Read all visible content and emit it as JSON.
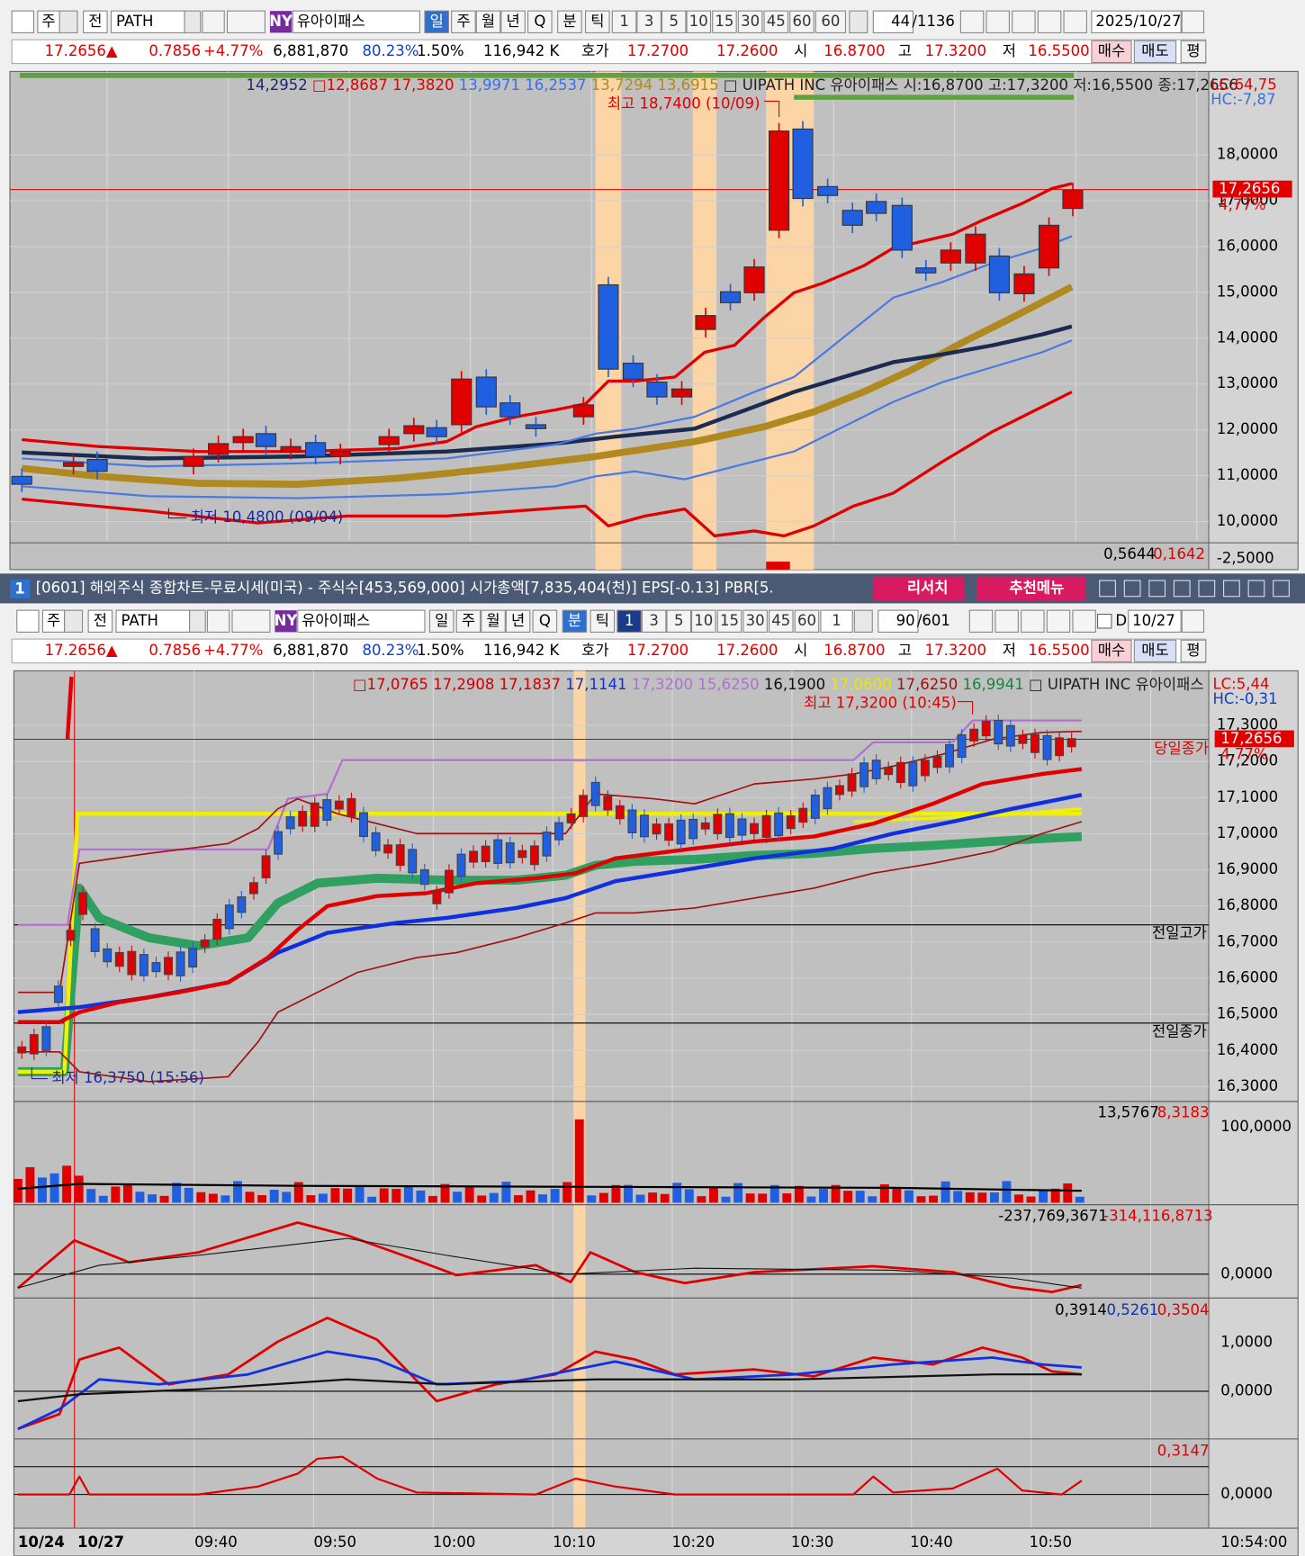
{
  "chart1": {
    "toolbar": {
      "market": "주",
      "mode": "전",
      "code": "PATH",
      "exchange": "NY",
      "name": "유아이패스",
      "periods": [
        "일",
        "주",
        "월",
        "년",
        "Q",
        "분",
        "틱"
      ],
      "intervals": [
        "1",
        "3",
        "5",
        "10",
        "15",
        "30",
        "45",
        "60",
        "60"
      ],
      "count": "44",
      "total": "/1136",
      "date": "2025/10/27"
    },
    "quote": {
      "price": "17.2656▲",
      "change": "0.7856",
      "rate": "+4.77%",
      "volume": "6,881,870",
      "strength": "80.23%",
      "turnover": "1.50%",
      "amount": "116,942 K",
      "quote_label": "호가",
      "ask": "17.2700",
      "bid": "17.2600",
      "open_label": "시",
      "open": "16.8700",
      "high_label": "고",
      "high": "17.3200",
      "low_label": "저",
      "low": "16.5500",
      "buttons": [
        "매수",
        "매도",
        "평"
      ]
    },
    "legend": [
      {
        "text": "14,2952",
        "color": "#1a2a6a"
      },
      {
        "text": " □12,8687 17,3820",
        "color": "#e00000"
      },
      {
        "text": " 13,9971 16,2537",
        "color": "#3a70e0"
      },
      {
        "text": " 13,7294 13,6915",
        "color": "#b08a20"
      },
      {
        "text": " □ UIPATH INC  유아이패스  시:16,8700 고:17,3200 저:16,5500 종:17,2656",
        "color": "#202020"
      }
    ],
    "lc": "LC:64,75",
    "hc": "HC:-7,87",
    "high_note": "최고 18,7400 (10/09)",
    "low_note": "최저 10,4800 (09/04)",
    "price_label": "17,2656",
    "rate_label": "4,77%",
    "axis": [
      "18,0000",
      "17,0000",
      "16,0000",
      "15,0000",
      "14,0000",
      "13,0000",
      "12,0000",
      "11,0000",
      "10,0000"
    ],
    "sub_values": [
      "0,5644",
      "0,1642"
    ],
    "sub_axis": "-2,5000"
  },
  "window2": {
    "number": "1",
    "title": "[0601] 해외주식 종합차트-무료시세(미국) - 주식수[453,569,000] 시가총액[7,835,404(천)] EPS[-0.13] PBR[5.",
    "buttons": [
      "리서치",
      "추천메뉴"
    ]
  },
  "chart2": {
    "toolbar": {
      "market": "주",
      "mode": "전",
      "code": "PATH",
      "exchange": "NY",
      "name": "유아이패스",
      "periods": [
        "일",
        "주",
        "월",
        "년",
        "Q",
        "분",
        "틱"
      ],
      "intervals": [
        "1",
        "3",
        "5",
        "10",
        "15",
        "30",
        "45",
        "60",
        "1"
      ],
      "count": "90",
      "total": "/601",
      "d": "D",
      "date": "10/27"
    },
    "quote": {
      "price": "17.2656▲",
      "change": "0.7856",
      "rate": "+4.77%",
      "volume": "6,881,870",
      "strength": "80.23%",
      "turnover": "1.50%",
      "amount": "116,942 K",
      "quote_label": "호가",
      "ask": "17.2700",
      "bid": "17.2600",
      "open_label": "시",
      "open": "16.8700",
      "high_label": "고",
      "high": "17.3200",
      "low_label": "저",
      "low": "16.5500",
      "buttons": [
        "매수",
        "매도",
        "평"
      ]
    },
    "legend": [
      {
        "text": "□17,0765 17,2908 17,1837 ",
        "color": "#d00000"
      },
      {
        "text": "17,1141 ",
        "color": "#1030d0"
      },
      {
        "text": "17,3200 15,6250 ",
        "color": "#b070d0"
      },
      {
        "text": "16,1900 ",
        "color": "#101010"
      },
      {
        "text": "17,0600 ",
        "color": "#e8e800"
      },
      {
        "text": "17,6250 ",
        "color": "#a01010"
      },
      {
        "text": "16,9941 ",
        "color": "#208040"
      },
      {
        "text": "□ UIPATH INC  유아이패스",
        "color": "#202020"
      }
    ],
    "lc": "LC:5,44",
    "hc": "HC:-0,31",
    "high_note": "최고 17,3200 (10:45)",
    "low_note": "최저 16,3750 (15:56)",
    "price_label": "17,2656",
    "rate_label": "4,77%",
    "axis": [
      "17,3000",
      "17,2000",
      "17,1000",
      "17,0000",
      "16,9000",
      "16,8000",
      "16,7000",
      "16,6000",
      "16,5000",
      "16,4000",
      "16,3000"
    ],
    "lines": {
      "today_close": "당일종가",
      "prev_high": "전일고가",
      "prev_close": "전일종가"
    },
    "volume": {
      "values": [
        "13,5767",
        "8,3183"
      ],
      "axis": "100,0000"
    },
    "macd": {
      "values": [
        "-237,769,3671",
        "-314,116,8713"
      ],
      "axis": "0,0000"
    },
    "osc": {
      "values": [
        "0,3914",
        "0,5261",
        "0,3504"
      ],
      "axis": [
        "1,0000",
        "0,0000"
      ]
    },
    "last": {
      "values": [
        "0,3147"
      ],
      "axis": "0,0000"
    },
    "time_axis": [
      "10/24",
      "10/27",
      "09:40",
      "09:50",
      "10:00",
      "10:10",
      "10:20",
      "10:30",
      "10:40",
      "10:50",
      "10:54:00"
    ]
  }
}
